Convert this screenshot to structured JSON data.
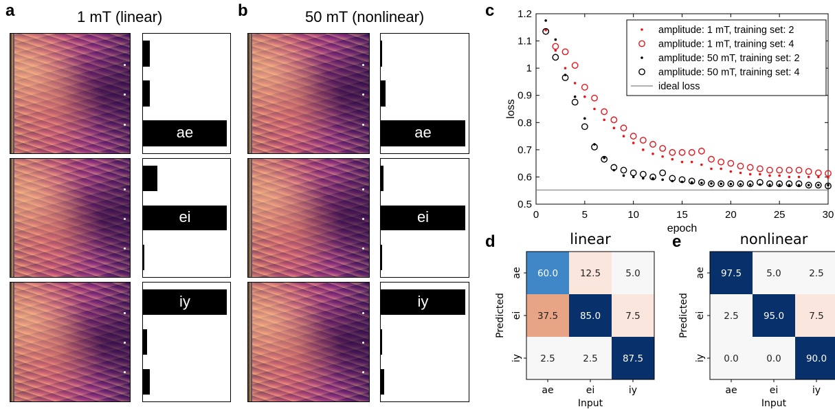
{
  "panels": {
    "a": {
      "letter": "a",
      "title": "1 mT (linear)"
    },
    "b": {
      "letter": "b",
      "title": "50 mT (nonlinear)"
    },
    "c": {
      "letter": "c"
    },
    "d": {
      "letter": "d",
      "title": "linear"
    },
    "e": {
      "letter": "e",
      "title": "nonlinear"
    }
  },
  "output_labels": [
    "ae",
    "ei",
    "iy"
  ],
  "output_bars": {
    "linear": [
      {
        "label": "ae",
        "values": [
          0.08,
          0.08,
          1.0
        ]
      },
      {
        "label": "ei",
        "values": [
          0.17,
          1.0,
          0.01
        ]
      },
      {
        "label": "iy",
        "values": [
          1.0,
          0.05,
          0.08
        ]
      }
    ],
    "nonlinear": [
      {
        "label": "ae",
        "values": [
          0.02,
          0.06,
          1.0
        ]
      },
      {
        "label": "ei",
        "values": [
          0.03,
          1.0,
          0.02
        ]
      },
      {
        "label": "iy",
        "values": [
          1.0,
          0.01,
          0.04
        ]
      }
    ]
  },
  "colors": {
    "red": "#e8141a",
    "black": "#000000",
    "ideal": "#808080",
    "cm_low": "#f7f7f7",
    "cm_high": "#08306b",
    "cm_orange": "#e8a585",
    "cm_peach": "#fbe6dd",
    "cm_mid": "#3f87c6"
  },
  "chart_data": [
    {
      "type": "scatter",
      "xlabel": "epoch",
      "ylabel": "loss",
      "xlim": [
        0,
        30
      ],
      "ylim": [
        0.5,
        1.2
      ],
      "xticks": [
        0,
        5,
        10,
        15,
        20,
        25,
        30
      ],
      "yticks": [
        0.5,
        0.6,
        0.7,
        0.8,
        0.9,
        1,
        1.1,
        1.2
      ],
      "legend_position": "top-right",
      "ideal_loss": 0.552,
      "series": [
        {
          "name": "amplitude: 1 mT, training set: 2",
          "marker": "dot",
          "color": "#e8141a",
          "x": [
            1,
            2,
            3,
            4,
            5,
            6,
            7,
            8,
            9,
            10,
            11,
            12,
            13,
            14,
            15,
            16,
            17,
            18,
            19,
            20,
            21,
            22,
            23,
            24,
            25,
            26,
            27,
            28,
            29,
            30
          ],
          "y": [
            1.14,
            1.065,
            1.0,
            0.945,
            0.895,
            0.85,
            0.81,
            0.78,
            0.75,
            0.725,
            0.7,
            0.685,
            0.675,
            0.665,
            0.655,
            0.655,
            0.645,
            0.63,
            0.63,
            0.62,
            0.615,
            0.61,
            0.61,
            0.605,
            0.605,
            0.6,
            0.6,
            0.6,
            0.6,
            0.598
          ]
        },
        {
          "name": "amplitude: 1 mT, training set: 4",
          "marker": "circle",
          "color": "#e8141a",
          "x": [
            1,
            2,
            3,
            4,
            5,
            6,
            7,
            8,
            9,
            10,
            11,
            12,
            13,
            14,
            15,
            16,
            17,
            18,
            19,
            20,
            21,
            22,
            23,
            24,
            25,
            26,
            27,
            28,
            29,
            30
          ],
          "y": [
            1.135,
            1.08,
            1.06,
            1.01,
            0.93,
            0.89,
            0.84,
            0.81,
            0.78,
            0.75,
            0.735,
            0.72,
            0.705,
            0.69,
            0.69,
            0.69,
            0.695,
            0.665,
            0.655,
            0.65,
            0.64,
            0.635,
            0.63,
            0.625,
            0.625,
            0.625,
            0.625,
            0.62,
            0.615,
            0.613
          ]
        },
        {
          "name": "amplitude: 50 mT, training set: 2",
          "marker": "dot",
          "color": "#000000",
          "x": [
            1,
            2,
            3,
            4,
            5,
            6,
            7,
            8,
            9,
            10,
            11,
            12,
            13,
            14,
            15,
            16,
            17,
            18,
            19,
            20,
            21,
            22,
            23,
            24,
            25,
            26,
            27,
            28,
            29,
            30
          ],
          "y": [
            1.175,
            1.105,
            0.975,
            0.895,
            0.815,
            0.72,
            0.67,
            0.625,
            0.605,
            0.6,
            0.595,
            0.595,
            0.59,
            0.585,
            0.582,
            0.58,
            0.578,
            0.576,
            0.575,
            0.574,
            0.573,
            0.572,
            0.572,
            0.571,
            0.571,
            0.57,
            0.57,
            0.57,
            0.57,
            0.57
          ]
        },
        {
          "name": "amplitude: 50 mT, training set: 4",
          "marker": "circle",
          "color": "#000000",
          "x": [
            1,
            2,
            3,
            4,
            5,
            6,
            7,
            8,
            9,
            10,
            11,
            12,
            13,
            14,
            15,
            16,
            17,
            18,
            19,
            20,
            21,
            22,
            23,
            24,
            25,
            26,
            27,
            28,
            29,
            30
          ],
          "y": [
            1.135,
            1.04,
            0.965,
            0.875,
            0.785,
            0.71,
            0.665,
            0.635,
            0.625,
            0.615,
            0.61,
            0.6,
            0.615,
            0.595,
            0.59,
            0.585,
            0.58,
            0.575,
            0.575,
            0.575,
            0.575,
            0.575,
            0.58,
            0.575,
            0.575,
            0.575,
            0.575,
            0.57,
            0.57,
            0.567
          ]
        },
        {
          "name": "ideal loss",
          "marker": "line",
          "color": "#808080",
          "x": [
            0,
            30
          ],
          "y": [
            0.552,
            0.552
          ]
        }
      ]
    },
    {
      "type": "heatmap",
      "title": "linear",
      "xlabel": "Input",
      "ylabel": "Predicted",
      "categories": [
        "ae",
        "ei",
        "iy"
      ],
      "values": [
        [
          60.0,
          12.5,
          5.0
        ],
        [
          37.5,
          85.0,
          7.5
        ],
        [
          2.5,
          2.5,
          87.5
        ]
      ],
      "labels": [
        [
          "60.0",
          "12.5",
          "5.0"
        ],
        [
          "37.5",
          "85.0",
          "7.5"
        ],
        [
          "2.5",
          "2.5",
          "87.5"
        ]
      ]
    },
    {
      "type": "heatmap",
      "title": "nonlinear",
      "xlabel": "Input",
      "ylabel": "Predicted",
      "categories": [
        "ae",
        "ei",
        "iy"
      ],
      "values": [
        [
          97.5,
          5.0,
          2.5
        ],
        [
          2.5,
          95.0,
          7.5
        ],
        [
          0.0,
          0.0,
          90.0
        ]
      ],
      "labels": [
        [
          "97.5",
          "5.0",
          "2.5"
        ],
        [
          "2.5",
          "95.0",
          "7.5"
        ],
        [
          "0.0",
          "0.0",
          "90.0"
        ]
      ]
    }
  ]
}
